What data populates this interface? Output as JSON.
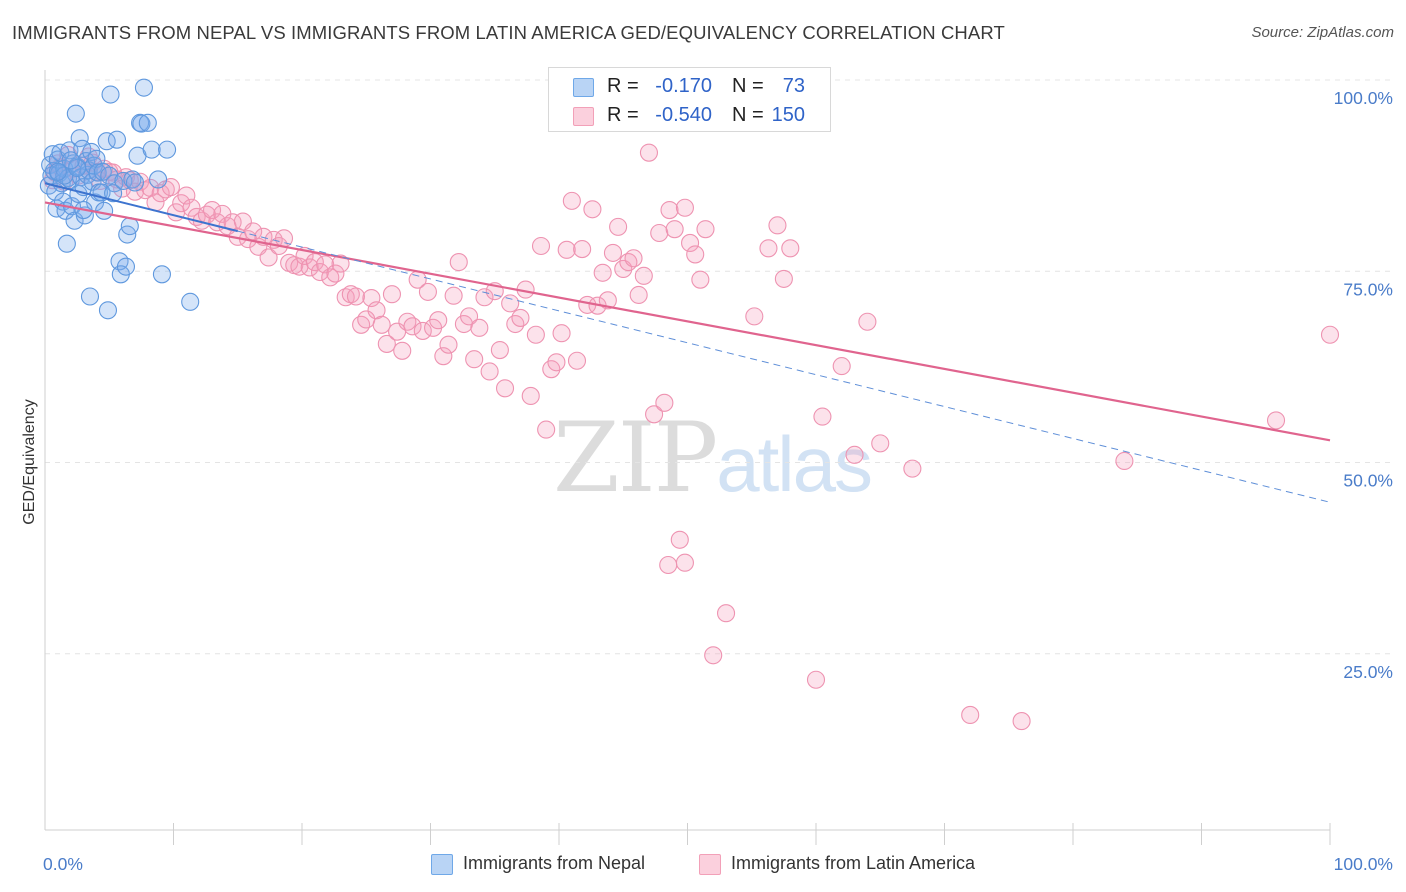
{
  "title": "IMMIGRANTS FROM NEPAL VS IMMIGRANTS FROM LATIN AMERICA GED/EQUIVALENCY CORRELATION CHART",
  "source": "Source: ZipAtlas.com",
  "watermark": {
    "zip": "ZIP",
    "atlas": "atlas"
  },
  "stats": [
    {
      "r_label": "R =",
      "r_value": "-0.170",
      "n_label": "N =",
      "n_value": "73",
      "color": "#6fa8e8"
    },
    {
      "r_label": "R =",
      "r_value": "-0.540",
      "n_label": "N =",
      "n_value": "150",
      "color": "#f2a0b8"
    }
  ],
  "legend": [
    {
      "label": "Immigrants from Nepal",
      "color": "#6fa8e8"
    },
    {
      "label": "Immigrants from Latin America",
      "color": "#f2a0b8"
    }
  ],
  "chart_data": {
    "type": "scatter",
    "title": "IMMIGRANTS FROM NEPAL VS IMMIGRANTS FROM LATIN AMERICA GED/EQUIVALENCY CORRELATION CHART",
    "xlabel": "",
    "ylabel": "GED/Equivalency",
    "xlim": [
      0,
      100
    ],
    "ylim": [
      0,
      105
    ],
    "x_tick_labels": [
      "0.0%",
      "100.0%"
    ],
    "y_ticks": [
      25,
      50,
      75,
      100
    ],
    "y_tick_labels": [
      "25.0%",
      "50.0%",
      "75.0%",
      "100.0%"
    ],
    "grid": true,
    "legend_position": "bottom",
    "series": [
      {
        "name": "Immigrants from Nepal",
        "color": "#6fa8e8",
        "points": [
          [
            0.3,
            86.2
          ],
          [
            0.4,
            88.9
          ],
          [
            0.5,
            87.5
          ],
          [
            0.6,
            90.3
          ],
          [
            0.7,
            88.1
          ],
          [
            0.8,
            85.4
          ],
          [
            0.9,
            83.2
          ],
          [
            1.0,
            89.6
          ],
          [
            1.1,
            87.8
          ],
          [
            1.2,
            90.5
          ],
          [
            1.3,
            86.5
          ],
          [
            1.4,
            84.1
          ],
          [
            1.5,
            88.4
          ],
          [
            1.6,
            82.9
          ],
          [
            1.7,
            78.6
          ],
          [
            1.8,
            87.2
          ],
          [
            1.9,
            90.8
          ],
          [
            2.0,
            86.9
          ],
          [
            2.1,
            83.5
          ],
          [
            2.2,
            89.1
          ],
          [
            2.3,
            81.6
          ],
          [
            2.4,
            95.6
          ],
          [
            2.5,
            88.7
          ],
          [
            2.6,
            85.1
          ],
          [
            2.7,
            92.4
          ],
          [
            2.8,
            87.3
          ],
          [
            2.9,
            91.0
          ],
          [
            3.0,
            86.0
          ],
          [
            3.1,
            82.3
          ],
          [
            3.2,
            89.4
          ],
          [
            3.3,
            87.6
          ],
          [
            3.4,
            88.2
          ],
          [
            3.5,
            71.7
          ],
          [
            3.6,
            90.6
          ],
          [
            3.7,
            86.7
          ],
          [
            3.8,
            88.8
          ],
          [
            3.9,
            84.0
          ],
          [
            4.0,
            89.7
          ],
          [
            4.1,
            87.9
          ],
          [
            4.2,
            85.3
          ],
          [
            4.5,
            88.0
          ],
          [
            4.8,
            92.0
          ],
          [
            5.0,
            87.5
          ],
          [
            5.4,
            86.5
          ],
          [
            4.4,
            85.3
          ],
          [
            4.6,
            82.9
          ],
          [
            4.9,
            69.9
          ],
          [
            5.1,
            98.1
          ],
          [
            5.3,
            85.2
          ],
          [
            5.6,
            92.2
          ],
          [
            5.8,
            76.3
          ],
          [
            5.9,
            74.6
          ],
          [
            6.1,
            86.8
          ],
          [
            6.3,
            75.6
          ],
          [
            6.4,
            79.8
          ],
          [
            6.6,
            80.9
          ],
          [
            6.8,
            87.0
          ],
          [
            7.0,
            86.6
          ],
          [
            7.2,
            90.1
          ],
          [
            7.4,
            94.4
          ],
          [
            7.5,
            94.3
          ],
          [
            7.7,
            99.0
          ],
          [
            8.0,
            94.4
          ],
          [
            8.3,
            90.9
          ],
          [
            8.8,
            87.0
          ],
          [
            9.1,
            74.6
          ],
          [
            9.5,
            90.9
          ],
          [
            11.3,
            71.0
          ],
          [
            1.5,
            87.5
          ],
          [
            2.5,
            88.5
          ],
          [
            3.0,
            83.0
          ],
          [
            1.0,
            88.0
          ],
          [
            2.0,
            89.5
          ]
        ]
      },
      {
        "name": "Immigrants from Latin America",
        "color": "#f2a0b8",
        "points": [
          [
            0.6,
            86.9
          ],
          [
            0.8,
            87.9
          ],
          [
            1.0,
            89.1
          ],
          [
            1.2,
            88.6
          ],
          [
            1.5,
            86.7
          ],
          [
            1.8,
            90.2
          ],
          [
            2.2,
            88.4
          ],
          [
            2.6,
            87.5
          ],
          [
            3.0,
            88.8
          ],
          [
            3.4,
            90.0
          ],
          [
            3.7,
            89.2
          ],
          [
            4.0,
            88.0
          ],
          [
            4.3,
            86.8
          ],
          [
            4.6,
            88.4
          ],
          [
            5.0,
            88.0
          ],
          [
            5.3,
            87.9
          ],
          [
            5.6,
            87.0
          ],
          [
            6.0,
            85.8
          ],
          [
            6.3,
            87.3
          ],
          [
            6.6,
            86.9
          ],
          [
            7.0,
            85.4
          ],
          [
            7.4,
            86.7
          ],
          [
            7.8,
            85.6
          ],
          [
            8.2,
            85.9
          ],
          [
            8.6,
            84.0
          ],
          [
            9.0,
            85.2
          ],
          [
            9.4,
            85.7
          ],
          [
            9.8,
            86.0
          ],
          [
            10.2,
            82.7
          ],
          [
            10.6,
            83.9
          ],
          [
            11.0,
            84.9
          ],
          [
            11.4,
            83.3
          ],
          [
            11.8,
            82.1
          ],
          [
            12.2,
            81.6
          ],
          [
            12.6,
            82.4
          ],
          [
            13.0,
            83.0
          ],
          [
            13.4,
            81.4
          ],
          [
            13.8,
            82.5
          ],
          [
            14.2,
            80.9
          ],
          [
            14.6,
            81.4
          ],
          [
            15.0,
            79.5
          ],
          [
            15.4,
            81.5
          ],
          [
            15.8,
            79.2
          ],
          [
            16.2,
            80.2
          ],
          [
            16.6,
            78.2
          ],
          [
            17.0,
            79.5
          ],
          [
            17.4,
            76.8
          ],
          [
            17.8,
            79.1
          ],
          [
            18.2,
            78.3
          ],
          [
            18.6,
            79.3
          ],
          [
            19.0,
            76.1
          ],
          [
            19.4,
            75.8
          ],
          [
            19.8,
            75.6
          ],
          [
            20.2,
            77.0
          ],
          [
            20.6,
            75.5
          ],
          [
            21.0,
            76.2
          ],
          [
            21.4,
            74.9
          ],
          [
            21.8,
            75.9
          ],
          [
            22.2,
            74.2
          ],
          [
            22.6,
            74.7
          ],
          [
            23.0,
            76.0
          ],
          [
            23.4,
            71.6
          ],
          [
            23.8,
            72.0
          ],
          [
            24.2,
            71.7
          ],
          [
            24.6,
            68.0
          ],
          [
            25.0,
            68.7
          ],
          [
            25.4,
            71.5
          ],
          [
            25.8,
            69.9
          ],
          [
            26.2,
            68.0
          ],
          [
            26.6,
            65.5
          ],
          [
            27.0,
            72.0
          ],
          [
            27.4,
            67.1
          ],
          [
            27.8,
            64.6
          ],
          [
            28.2,
            68.4
          ],
          [
            28.6,
            67.8
          ],
          [
            29.0,
            73.9
          ],
          [
            29.4,
            67.2
          ],
          [
            29.8,
            72.3
          ],
          [
            30.2,
            67.6
          ],
          [
            30.6,
            68.6
          ],
          [
            31.0,
            63.9
          ],
          [
            31.4,
            65.4
          ],
          [
            31.8,
            71.8
          ],
          [
            32.2,
            76.2
          ],
          [
            32.6,
            68.1
          ],
          [
            33.0,
            69.1
          ],
          [
            33.4,
            63.5
          ],
          [
            33.8,
            67.6
          ],
          [
            34.2,
            71.6
          ],
          [
            34.6,
            61.9
          ],
          [
            35.0,
            72.4
          ],
          [
            35.4,
            64.7
          ],
          [
            35.8,
            59.7
          ],
          [
            36.2,
            70.8
          ],
          [
            36.6,
            68.1
          ],
          [
            37.0,
            68.9
          ],
          [
            37.4,
            72.6
          ],
          [
            37.8,
            58.7
          ],
          [
            38.2,
            66.7
          ],
          [
            38.6,
            78.3
          ],
          [
            39.0,
            54.3
          ],
          [
            39.4,
            62.2
          ],
          [
            39.8,
            63.1
          ],
          [
            40.2,
            66.9
          ],
          [
            40.6,
            77.8
          ],
          [
            41.0,
            84.2
          ],
          [
            41.4,
            63.3
          ],
          [
            41.8,
            77.9
          ],
          [
            42.2,
            70.6
          ],
          [
            42.6,
            83.1
          ],
          [
            43.0,
            70.5
          ],
          [
            43.4,
            74.8
          ],
          [
            43.8,
            71.2
          ],
          [
            44.2,
            77.4
          ],
          [
            44.6,
            80.8
          ],
          [
            45.0,
            75.3
          ],
          [
            45.4,
            76.2
          ],
          [
            45.8,
            76.7
          ],
          [
            46.2,
            71.9
          ],
          [
            46.6,
            74.4
          ],
          [
            47.0,
            90.5
          ],
          [
            47.4,
            56.3
          ],
          [
            47.8,
            80.0
          ],
          [
            48.2,
            57.8
          ],
          [
            48.6,
            83.0
          ],
          [
            49.0,
            80.5
          ],
          [
            49.4,
            39.9
          ],
          [
            49.8,
            83.3
          ],
          [
            50.2,
            78.7
          ],
          [
            50.6,
            77.2
          ],
          [
            51.0,
            73.9
          ],
          [
            51.4,
            80.5
          ],
          [
            52.0,
            24.8
          ],
          [
            53.0,
            30.3
          ],
          [
            55.2,
            69.1
          ],
          [
            56.3,
            78.0
          ],
          [
            57.0,
            81.0
          ],
          [
            57.5,
            74.0
          ],
          [
            58.0,
            78.0
          ],
          [
            60.0,
            21.6
          ],
          [
            60.5,
            56.0
          ],
          [
            62.0,
            62.6
          ],
          [
            63.0,
            51.0
          ],
          [
            64.0,
            68.4
          ],
          [
            65.0,
            52.5
          ],
          [
            67.5,
            49.2
          ],
          [
            72.0,
            17.0
          ],
          [
            76.0,
            16.2
          ],
          [
            84.0,
            50.2
          ],
          [
            95.8,
            55.5
          ],
          [
            100.0,
            66.7
          ],
          [
            48.5,
            36.6
          ],
          [
            49.8,
            36.9
          ]
        ]
      }
    ],
    "trend_lines": [
      {
        "series": "Immigrants from Nepal",
        "x": [
          0,
          100
        ],
        "y": [
          86.5,
          44.8
        ],
        "style": "dashed"
      },
      {
        "series": "Immigrants from Latin America",
        "x": [
          0,
          100
        ],
        "y": [
          84.0,
          52.9
        ],
        "style": "solid"
      }
    ]
  }
}
